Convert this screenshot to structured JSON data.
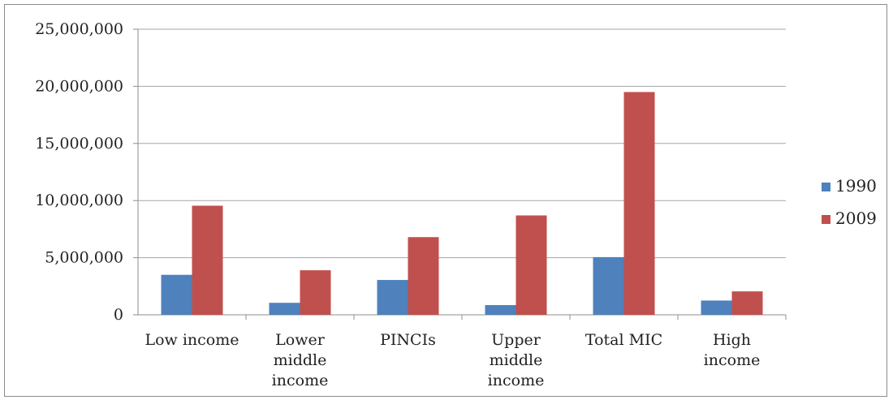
{
  "chart_data": {
    "type": "bar",
    "categories": [
      [
        "Low income"
      ],
      [
        "Lower",
        "middle",
        "income"
      ],
      [
        "PINCIs"
      ],
      [
        "Upper",
        "middle",
        "income"
      ],
      [
        "Total MIC"
      ],
      [
        "High",
        "income"
      ]
    ],
    "series": [
      {
        "name": "1990",
        "color": "#4f81bd",
        "values": [
          3500000,
          1050000,
          3050000,
          850000,
          5050000,
          1250000
        ]
      },
      {
        "name": "2009",
        "color": "#c0504d",
        "values": [
          9550000,
          3900000,
          6800000,
          8700000,
          19500000,
          2050000
        ]
      }
    ],
    "ylim": [
      0,
      25000000
    ],
    "yticks": [
      0,
      5000000,
      10000000,
      15000000,
      20000000,
      25000000
    ],
    "ytick_labels": [
      "0",
      "5,000,000",
      "10,000,000",
      "15,000,000",
      "20,000,000",
      "25,000,000"
    ],
    "grid": true,
    "legend_position": "right"
  }
}
